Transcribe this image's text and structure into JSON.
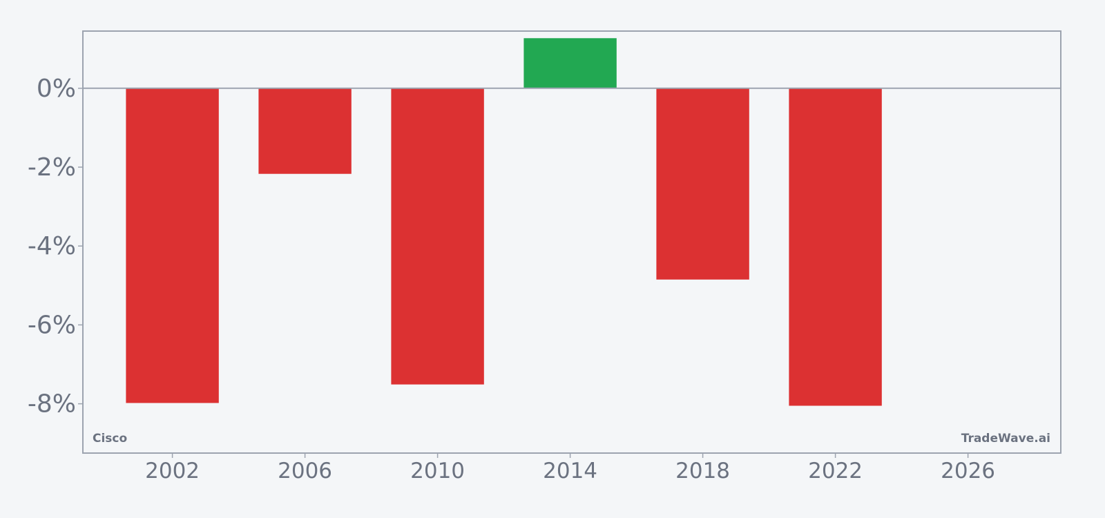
{
  "colors": {
    "background": "#f4f6f8",
    "frame": "#9ca3af",
    "negative": "#dc3132",
    "positive": "#22a852",
    "text": "#6b7280"
  },
  "labels": {
    "company": "Cisco",
    "brand": "TradeWave.ai"
  },
  "chart_data": {
    "type": "bar",
    "x": [
      2002,
      2006,
      2010,
      2014,
      2018,
      2022
    ],
    "values": [
      -7.98,
      -2.17,
      -7.51,
      1.27,
      -4.85,
      -8.05
    ],
    "unit": "%",
    "xlim": [
      1999.3,
      2028.8
    ],
    "ylim": [
      -9.25,
      1.45
    ],
    "x_ticks": [
      2002,
      2006,
      2010,
      2014,
      2018,
      2022,
      2026
    ],
    "y_ticks": [
      0,
      -2,
      -4,
      -6,
      -8
    ],
    "x_tick_labels": [
      "2002",
      "2006",
      "2010",
      "2014",
      "2018",
      "2022",
      "2026"
    ],
    "y_tick_labels": [
      "0%",
      "-2%",
      "-4%",
      "-6%",
      "-8%"
    ],
    "title": "",
    "xlabel": "",
    "ylabel": "",
    "grid": false,
    "legend": "none"
  }
}
